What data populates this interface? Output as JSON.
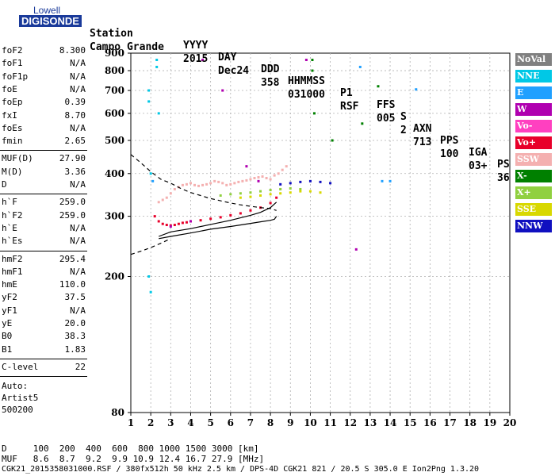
{
  "logo": {
    "line1": "Lowell",
    "line2": "DIGISONDE"
  },
  "header": {
    "labels": [
      "Station",
      "YYYY",
      "DAY",
      "DDD",
      "HHMMSS",
      "P1",
      "FFS",
      "S",
      "AXN",
      "PPS",
      "IGA",
      "PS"
    ],
    "values": [
      "Campo Grande",
      "2015",
      "Dec24",
      "358",
      "031000",
      "RSF",
      "005",
      "2",
      "713",
      "100",
      "03+",
      "36"
    ]
  },
  "params": {
    "group1": [
      {
        "k": "foF2",
        "v": "8.300"
      },
      {
        "k": "foF1",
        "v": "N/A"
      },
      {
        "k": "foF1p",
        "v": "N/A"
      },
      {
        "k": "foE",
        "v": "N/A"
      },
      {
        "k": "foEp",
        "v": "0.39"
      },
      {
        "k": "fxI",
        "v": "8.70"
      },
      {
        "k": "foEs",
        "v": "N/A"
      },
      {
        "k": "fmin",
        "v": "2.65"
      }
    ],
    "group2": [
      {
        "k": "MUF(D)",
        "v": "27.90"
      },
      {
        "k": "M(D)",
        "v": "3.36"
      },
      {
        "k": "D",
        "v": "N/A"
      }
    ],
    "group3": [
      {
        "k": "h`F",
        "v": "259.0"
      },
      {
        "k": "h`F2",
        "v": "259.0"
      },
      {
        "k": "h`E",
        "v": "N/A"
      },
      {
        "k": "h`Es",
        "v": "N/A"
      }
    ],
    "group4": [
      {
        "k": "hmF2",
        "v": "295.4"
      },
      {
        "k": "hmF1",
        "v": "N/A"
      },
      {
        "k": "hmE",
        "v": "110.0"
      },
      {
        "k": "yF2",
        "v": "37.5"
      },
      {
        "k": "yF1",
        "v": "N/A"
      },
      {
        "k": "yE",
        "v": "20.0"
      },
      {
        "k": "B0",
        "v": "38.3"
      },
      {
        "k": "B1",
        "v": "1.83"
      }
    ],
    "group5": [
      {
        "k": "C-level",
        "v": "22"
      }
    ],
    "auto": [
      "Auto:",
      "Artist5",
      "500200"
    ]
  },
  "legend": [
    {
      "label": "NoVal",
      "color": "#808080"
    },
    {
      "label": "NNE",
      "color": "#00c8e6"
    },
    {
      "label": "E",
      "color": "#20a0ff"
    },
    {
      "label": "W",
      "color": "#b000b0"
    },
    {
      "label": "Vo-",
      "color": "#ff40c0"
    },
    {
      "label": "Vo+",
      "color": "#e8002a"
    },
    {
      "label": "SSW",
      "color": "#f4b0b0"
    },
    {
      "label": "X-",
      "color": "#008000"
    },
    {
      "label": "X+",
      "color": "#90d040"
    },
    {
      "label": "SSE",
      "color": "#d8d800"
    },
    {
      "label": "NNW",
      "color": "#1010c0"
    }
  ],
  "footer": {
    "d_line": "D     100  200  400  600  800 1000 1500 3000 [km]",
    "muf_line": "MUF   8.6  8.7  9.2  9.9 10.9 12.4 16.7 27.9 [MHz]",
    "file_line": "CGK21_2015358031000.RSF / 380fx512h 50 kHz 2.5 km / DPS-4D CGK21 821 / 20.5 S 305.0 E Ion2Png 1.3.20"
  },
  "chart_data": {
    "type": "scatter",
    "title": "",
    "xlabel": "",
    "ylabel": "",
    "xlim": [
      1,
      20
    ],
    "ylim": [
      80,
      900
    ],
    "yscale": "log",
    "xticks": [
      1,
      2,
      3,
      4,
      5,
      6,
      7,
      8,
      9,
      10,
      11,
      12,
      13,
      14,
      15,
      16,
      17,
      18,
      19,
      20
    ],
    "yticks": [
      80,
      200,
      300,
      400,
      500,
      600,
      700,
      800,
      900
    ],
    "grid": true,
    "series": [
      {
        "name": "SSW",
        "color": "#f4b0b0",
        "x": [
          2.4,
          2.6,
          2.8,
          3.0,
          3.2,
          3.4,
          3.6,
          3.8,
          4.0,
          4.2,
          4.4,
          4.6,
          4.8,
          5.0,
          5.2,
          5.4,
          5.6,
          5.8,
          6.0,
          6.2,
          6.4,
          6.6,
          6.8,
          7.0,
          7.2,
          7.4,
          7.6,
          7.8,
          8.0,
          8.2,
          8.4,
          8.6,
          8.8
        ],
        "y": [
          330,
          335,
          340,
          350,
          360,
          365,
          370,
          372,
          375,
          370,
          368,
          370,
          372,
          375,
          380,
          378,
          375,
          370,
          372,
          375,
          378,
          380,
          382,
          385,
          388,
          390,
          392,
          388,
          385,
          395,
          400,
          410,
          420
        ]
      },
      {
        "name": "Vo+",
        "color": "#e8002a",
        "x": [
          2.2,
          2.4,
          2.6,
          2.8,
          3.0,
          3.2,
          3.4,
          3.6,
          3.8,
          4.0,
          4.5,
          5.0,
          5.5,
          6.0,
          6.5,
          7.0,
          7.5,
          8.0,
          8.3
        ],
        "y": [
          300,
          290,
          285,
          283,
          282,
          283,
          285,
          287,
          288,
          290,
          292,
          295,
          298,
          302,
          306,
          312,
          318,
          328,
          340
        ]
      },
      {
        "name": "X+",
        "color": "#90d040",
        "x": [
          5.5,
          6.0,
          6.5,
          7.0,
          7.5,
          8.0,
          8.5,
          9.0,
          9.5
        ],
        "y": [
          345,
          348,
          350,
          352,
          355,
          358,
          360,
          362,
          360
        ]
      },
      {
        "name": "SSE",
        "color": "#d8d800",
        "x": [
          6.5,
          7.0,
          7.5,
          8.0,
          8.5,
          9.0,
          9.5,
          10.0,
          10.5
        ],
        "y": [
          340,
          342,
          345,
          348,
          350,
          352,
          355,
          355,
          352
        ]
      },
      {
        "name": "NNW",
        "color": "#1010c0",
        "x": [
          8.5,
          9.0,
          9.5,
          10.0,
          10.5,
          11.0
        ],
        "y": [
          372,
          375,
          378,
          380,
          378,
          375
        ]
      },
      {
        "name": "NNE",
        "color": "#00c8e6",
        "x": [
          1.9,
          1.9,
          1.9,
          2.0,
          2.0,
          2.3,
          2.3,
          2.4
        ],
        "y": [
          700,
          650,
          200,
          180,
          400,
          860,
          820,
          600
        ]
      },
      {
        "name": "X-",
        "color": "#008000",
        "x": [
          10.1,
          10.1,
          10.2,
          11.1,
          12.6,
          13.4
        ],
        "y": [
          860,
          800,
          600,
          500,
          560,
          720
        ]
      },
      {
        "name": "W",
        "color": "#b000b0",
        "x": [
          3.0,
          4.0,
          4.6,
          5.6,
          6.8,
          7.4,
          9.8,
          12.3
        ],
        "y": [
          280,
          290,
          860,
          700,
          420,
          380,
          860,
          240
        ]
      },
      {
        "name": "E",
        "color": "#20a0ff",
        "x": [
          2.1,
          12.5,
          13.6,
          14.0,
          15.3
        ],
        "y": [
          380,
          820,
          380,
          380,
          705
        ]
      }
    ],
    "curves": [
      {
        "name": "profile",
        "x": [
          2.4,
          3.0,
          4.0,
          5.0,
          6.0,
          7.0,
          7.5,
          8.0,
          8.2,
          8.3
        ],
        "y": [
          258,
          262,
          268,
          275,
          280,
          286,
          289,
          292,
          294,
          300
        ]
      },
      {
        "name": "virtual",
        "x": [
          2.4,
          3.0,
          4.0,
          5.0,
          6.0,
          7.0,
          7.5,
          8.0,
          8.3
        ],
        "y": [
          262,
          270,
          276,
          284,
          292,
          302,
          308,
          318,
          330
        ]
      },
      {
        "name": "dashed-upper",
        "x": [
          1.0,
          1.5,
          2.0,
          2.5,
          3.0,
          3.5,
          4.0,
          4.5,
          5.0,
          5.5,
          6.0,
          6.5,
          7.0,
          7.5,
          8.0,
          8.3
        ],
        "y": [
          455,
          430,
          405,
          385,
          375,
          362,
          352,
          345,
          338,
          333,
          328,
          324,
          321,
          318,
          316,
          312
        ]
      },
      {
        "name": "dashed-lower",
        "x": [
          1.0,
          1.5,
          2.0,
          2.5,
          3.0
        ],
        "y": [
          232,
          237,
          243,
          250,
          258
        ]
      }
    ]
  }
}
